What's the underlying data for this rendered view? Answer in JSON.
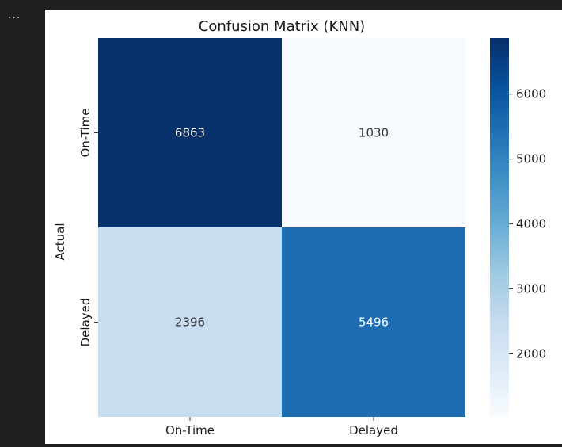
{
  "toolbar": {
    "more_icon": "ellipsis-icon",
    "more_glyph": "..."
  },
  "chart_data": {
    "type": "heatmap",
    "title": "Confusion Matrix (KNN)",
    "ylabel": "Actual",
    "xlabel": "",
    "x_categories": [
      "On-Time",
      "Delayed"
    ],
    "y_categories": [
      "On-Time",
      "Delayed"
    ],
    "values": [
      [
        6863,
        1030
      ],
      [
        2396,
        5496
      ]
    ],
    "colormap": "Blues",
    "colorbar": {
      "min": 1030,
      "max": 6863,
      "ticks": [
        2000,
        3000,
        4000,
        5000,
        6000
      ]
    },
    "annotation_colors": {
      "dark_cells": "#ffffff",
      "light_cells": "#333333"
    }
  }
}
